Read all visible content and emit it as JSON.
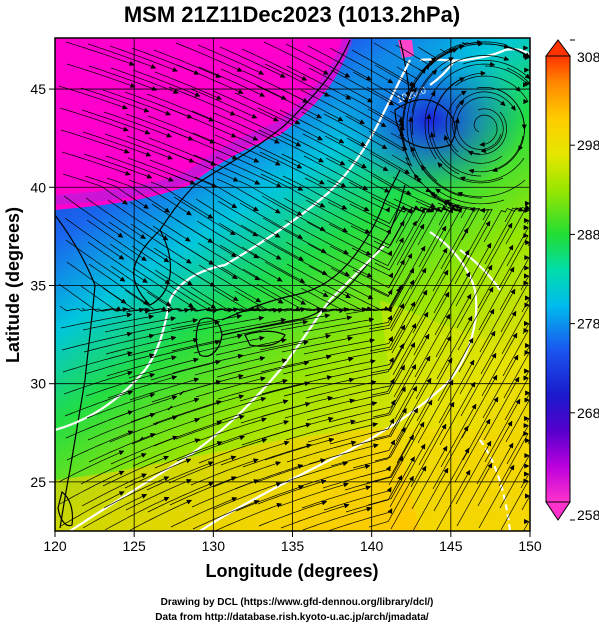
{
  "title": "MSM 21Z11Dec2023 (1013.2hPa)",
  "xaxis": {
    "label": "Longitude (degrees)",
    "range": [
      120,
      150
    ],
    "ticks": [
      120,
      125,
      130,
      135,
      140,
      145,
      150
    ]
  },
  "yaxis": {
    "label": "Latitude  (degrees)",
    "range": [
      22.5,
      47.6
    ],
    "ticks": [
      25,
      30,
      35,
      40,
      45
    ]
  },
  "grid_lines": {
    "lon": [
      125,
      130,
      135,
      140,
      145
    ],
    "lat": [
      25,
      30,
      35,
      40,
      45
    ]
  },
  "colorbar": {
    "min": 258,
    "max": 308,
    "ticks": [
      258,
      268,
      278,
      288,
      298,
      308
    ]
  },
  "contour_labels": [
    {
      "text": "1020.0",
      "lon": 140.8,
      "lat": 45.4
    }
  ],
  "credits": {
    "line1": "Drawing by DCL (https://www.gfd-dennou.org/library/dcl/)",
    "line2": "Data from http://database.rish.kyoto-u.ac.jp/arch/jmadata/"
  },
  "colors": {
    "cold_magenta": "#ff00cc",
    "blue": "#1a3ad8",
    "cyan": "#00ccdd",
    "green": "#33dd22",
    "yellow": "#e6e600",
    "orange": "#ffaa00",
    "land_outline": "#000000",
    "isobar": "#ffffff"
  }
}
